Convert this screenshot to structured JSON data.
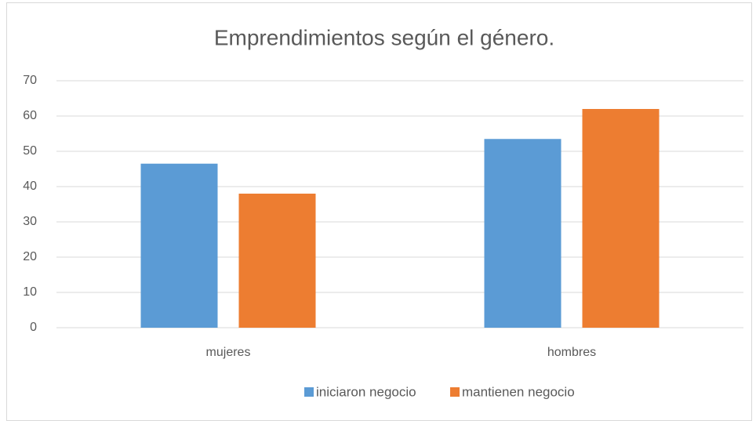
{
  "chart_data": {
    "type": "bar",
    "title": "Emprendimientos según el género.",
    "categories": [
      "mujeres",
      "hombres"
    ],
    "series": [
      {
        "name": "iniciaron negocio",
        "color": "#5b9bd5",
        "values": [
          46.5,
          53.5
        ]
      },
      {
        "name": "mantienen negocio",
        "color": "#ed7d31",
        "values": [
          38,
          62
        ]
      }
    ],
    "ylim": [
      0,
      70
    ],
    "yticks": [
      0,
      10,
      20,
      30,
      40,
      50,
      60,
      70
    ],
    "grid": true,
    "legend": "bottom"
  }
}
